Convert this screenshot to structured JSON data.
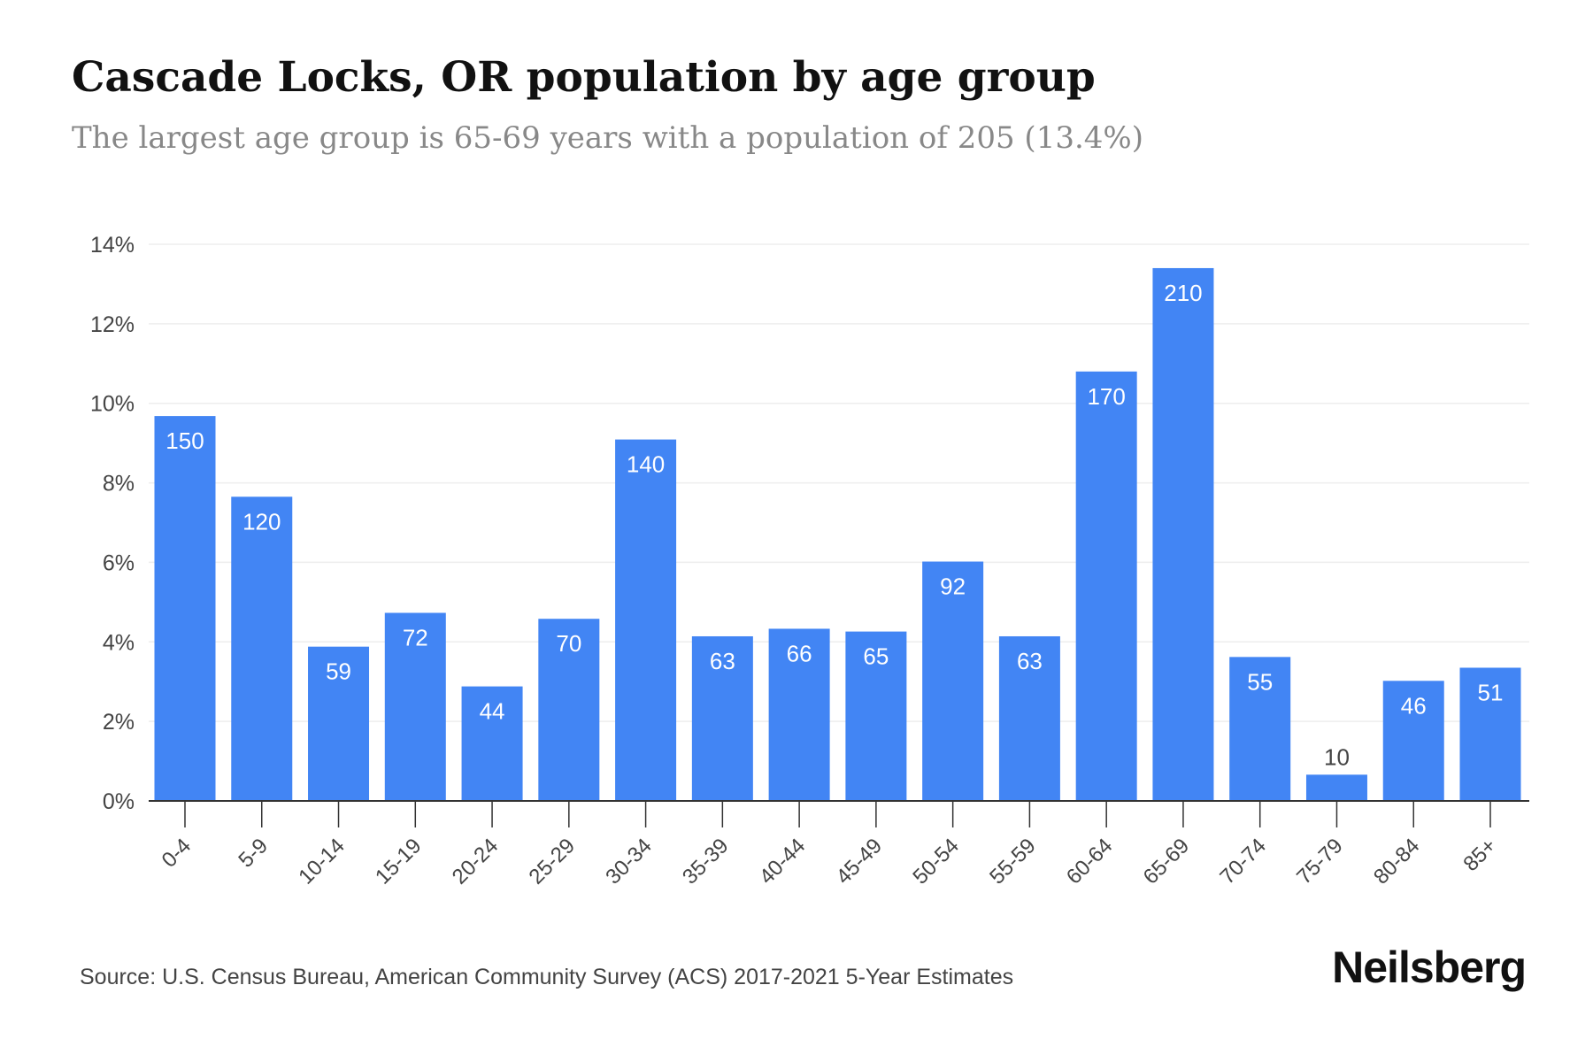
{
  "header": {
    "title": "Cascade Locks, OR population by age group",
    "subtitle": "The largest age group is 65-69 years with a population of 205 (13.4%)"
  },
  "footer": {
    "source": "Source: U.S. Census Bureau, American Community Survey (ACS) 2017-2021 5-Year Estimates",
    "brand": "Neilsberg"
  },
  "colors": {
    "bar": "#4285f4",
    "grid": "#eeeeee",
    "axis": "#333333",
    "tick_text": "#444444",
    "bar_label": "#ffffff",
    "outside_label": "#444444"
  },
  "chart_data": {
    "type": "bar",
    "categories": [
      "0-4",
      "5-9",
      "10-14",
      "15-19",
      "20-24",
      "25-29",
      "30-34",
      "35-39",
      "40-44",
      "45-49",
      "50-54",
      "55-59",
      "60-64",
      "65-69",
      "70-74",
      "75-79",
      "80-84",
      "85+"
    ],
    "values": [
      9.68,
      7.65,
      3.88,
      4.73,
      2.88,
      4.58,
      9.09,
      4.14,
      4.33,
      4.26,
      6.02,
      4.14,
      10.8,
      13.4,
      3.62,
      0.66,
      3.02,
      3.35
    ],
    "labels": [
      "150",
      "120",
      "59",
      "72",
      "44",
      "70",
      "140",
      "63",
      "66",
      "65",
      "92",
      "63",
      "170",
      "210",
      "55",
      "10",
      "46",
      "51"
    ],
    "ylim": [
      0,
      14
    ],
    "yticks": [
      0,
      2,
      4,
      6,
      8,
      10,
      12,
      14
    ],
    "ytick_labels": [
      "0%",
      "2%",
      "4%",
      "6%",
      "8%",
      "10%",
      "12%",
      "14%"
    ],
    "grid": true,
    "xlabel": "",
    "ylabel": ""
  }
}
